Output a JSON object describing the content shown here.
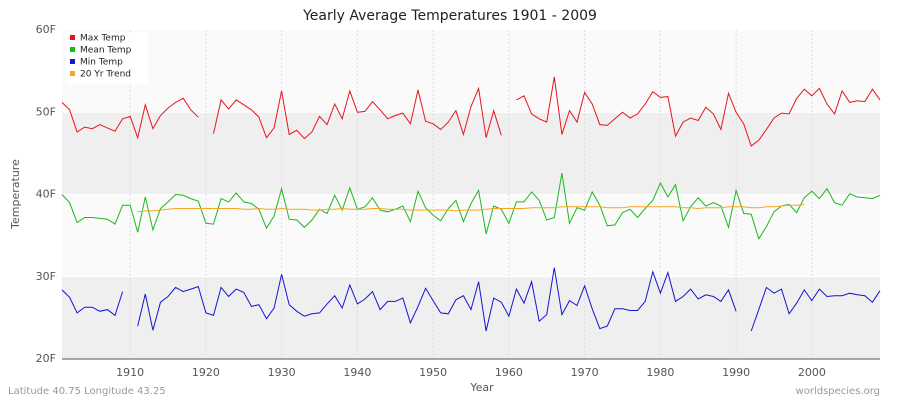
{
  "chart_data": {
    "type": "line",
    "title": "Yearly Average Temperatures 1901 - 2009",
    "xlabel": "Year",
    "ylabel": "Temperature",
    "footer_left": "Latitude 40.75 Longitude 43.25",
    "footer_right": "worldspecies.org",
    "x": [
      1901,
      1902,
      1903,
      1904,
      1905,
      1906,
      1907,
      1908,
      1909,
      1910,
      1911,
      1912,
      1913,
      1914,
      1915,
      1916,
      1917,
      1918,
      1919,
      1920,
      1921,
      1922,
      1923,
      1924,
      1925,
      1926,
      1927,
      1928,
      1929,
      1930,
      1931,
      1932,
      1933,
      1934,
      1935,
      1936,
      1937,
      1938,
      1939,
      1940,
      1941,
      1942,
      1943,
      1944,
      1945,
      1946,
      1947,
      1948,
      1949,
      1950,
      1951,
      1952,
      1953,
      1954,
      1955,
      1956,
      1957,
      1958,
      1959,
      1960,
      1961,
      1962,
      1963,
      1964,
      1965,
      1966,
      1967,
      1968,
      1969,
      1970,
      1971,
      1972,
      1973,
      1974,
      1975,
      1976,
      1977,
      1978,
      1979,
      1980,
      1981,
      1982,
      1983,
      1984,
      1985,
      1986,
      1987,
      1988,
      1989,
      1990,
      1991,
      1992,
      1993,
      1994,
      1995,
      1996,
      1997,
      1998,
      1999,
      2000,
      2001,
      2002,
      2003,
      2004,
      2005,
      2006,
      2007,
      2008,
      2009
    ],
    "series": [
      {
        "name": "Max Temp",
        "color": "#e8141c",
        "values": [
          51.2,
          50.3,
          47.6,
          48.2,
          48.0,
          48.5,
          48.1,
          47.7,
          49.2,
          49.5,
          46.9,
          50.9,
          48.0,
          49.6,
          50.5,
          51.2,
          51.7,
          50.3,
          49.4,
          null,
          47.4,
          51.5,
          50.4,
          51.5,
          50.9,
          50.3,
          49.4,
          46.9,
          48.1,
          52.6,
          47.3,
          47.8,
          46.8,
          47.6,
          49.5,
          48.5,
          51.0,
          49.2,
          52.6,
          50.0,
          50.1,
          51.3,
          50.3,
          49.2,
          49.6,
          49.9,
          48.6,
          52.7,
          48.9,
          48.6,
          47.9,
          48.8,
          50.2,
          47.3,
          50.7,
          52.9,
          46.9,
          50.2,
          47.2,
          null,
          51.5,
          52.0,
          49.8,
          49.2,
          48.8,
          54.3,
          47.3,
          50.2,
          48.8,
          52.4,
          51.0,
          48.5,
          48.4,
          49.2,
          50.0,
          49.3,
          49.8,
          51.0,
          52.5,
          51.8,
          51.9,
          47.1,
          48.8,
          49.3,
          49.0,
          50.6,
          49.8,
          47.9,
          52.3,
          50.0,
          48.6,
          45.9,
          46.6,
          47.9,
          49.3,
          49.9,
          49.8,
          51.7,
          52.8,
          52.0,
          52.9,
          51.0,
          49.8,
          52.6,
          51.2,
          51.4,
          51.3,
          52.8,
          51.5
        ]
      },
      {
        "name": "Mean Temp",
        "color": "#1cb81c",
        "values": [
          40.0,
          39.0,
          36.6,
          37.2,
          37.2,
          37.1,
          37.0,
          36.4,
          38.7,
          38.7,
          35.4,
          39.7,
          35.7,
          38.3,
          39.1,
          40.0,
          39.9,
          39.5,
          39.2,
          36.5,
          36.4,
          39.5,
          39.1,
          40.2,
          39.1,
          38.9,
          38.2,
          35.9,
          37.4,
          40.7,
          37.0,
          36.9,
          36.0,
          36.9,
          38.2,
          37.7,
          39.9,
          38.1,
          40.8,
          38.2,
          38.5,
          39.6,
          38.1,
          37.9,
          38.2,
          38.6,
          36.7,
          40.4,
          38.4,
          37.5,
          36.8,
          38.3,
          39.3,
          36.7,
          38.9,
          40.5,
          35.2,
          38.6,
          38.2,
          36.5,
          39.1,
          39.1,
          40.3,
          39.3,
          36.9,
          37.2,
          42.6,
          36.5,
          38.4,
          38.1,
          40.3,
          38.7,
          36.2,
          36.3,
          37.8,
          38.2,
          37.2,
          38.3,
          39.3,
          41.4,
          39.7,
          41.2,
          36.8,
          38.5,
          39.6,
          38.6,
          39.0,
          38.6,
          36.0,
          40.5,
          37.7,
          37.6,
          34.6,
          36.1,
          37.9,
          38.6,
          38.8,
          37.8,
          39.6,
          40.4,
          39.5,
          40.7,
          39.0,
          38.7,
          40.1,
          39.7,
          39.6,
          39.5,
          39.9
        ]
      },
      {
        "name": "Min Temp",
        "color": "#1414d2",
        "values": [
          28.4,
          27.5,
          25.6,
          26.3,
          26.3,
          25.8,
          26.0,
          25.3,
          28.2,
          null,
          24.0,
          27.9,
          23.5,
          26.9,
          27.6,
          28.7,
          28.2,
          28.5,
          28.8,
          25.6,
          25.3,
          28.7,
          27.6,
          28.5,
          28.1,
          26.4,
          26.6,
          24.9,
          26.2,
          30.3,
          26.6,
          25.8,
          25.2,
          25.5,
          25.6,
          26.7,
          27.7,
          26.2,
          29.0,
          26.7,
          27.3,
          28.2,
          26.0,
          27.0,
          27.0,
          27.4,
          24.4,
          26.4,
          28.6,
          27.1,
          25.6,
          25.5,
          27.2,
          27.7,
          26.0,
          29.4,
          23.4,
          27.4,
          26.9,
          25.2,
          28.5,
          26.8,
          29.4,
          24.6,
          25.4,
          31.1,
          25.4,
          27.1,
          26.5,
          28.9,
          26.1,
          23.7,
          24.0,
          26.1,
          26.1,
          25.9,
          25.9,
          27.0,
          30.6,
          28.0,
          30.5,
          27.0,
          27.6,
          28.5,
          27.3,
          27.8,
          27.6,
          27.0,
          28.4,
          25.8,
          null,
          23.4,
          26.0,
          28.7,
          28.0,
          28.5,
          25.5,
          26.8,
          28.4,
          27.1,
          28.5,
          27.6,
          27.7,
          27.7,
          28.0,
          27.8,
          27.7,
          26.9,
          28.3
        ]
      },
      {
        "name": "20 Yr Trend",
        "color": "#f5a623",
        "values": [
          null,
          null,
          null,
          null,
          null,
          null,
          null,
          null,
          null,
          null,
          37.9,
          38.0,
          38.0,
          38.1,
          38.2,
          38.3,
          38.3,
          38.3,
          38.3,
          38.3,
          38.3,
          38.3,
          38.3,
          38.3,
          38.2,
          38.2,
          38.3,
          38.2,
          38.2,
          38.3,
          38.2,
          38.2,
          38.2,
          38.1,
          38.1,
          38.2,
          38.2,
          38.3,
          38.2,
          38.2,
          38.2,
          38.3,
          38.3,
          38.2,
          38.2,
          38.2,
          38.1,
          38.1,
          38.1,
          38.1,
          38.1,
          38.1,
          38.0,
          38.1,
          38.1,
          38.1,
          38.2,
          38.3,
          38.3,
          38.3,
          38.3,
          38.3,
          38.4,
          38.4,
          38.4,
          38.4,
          38.5,
          38.5,
          38.5,
          38.5,
          38.5,
          38.5,
          38.4,
          38.4,
          38.4,
          38.5,
          38.5,
          38.5,
          38.5,
          38.5,
          38.5,
          38.5,
          38.4,
          38.4,
          38.3,
          38.4,
          38.4,
          38.4,
          38.5,
          38.5,
          38.5,
          38.4,
          38.4,
          38.5,
          38.5,
          38.6,
          38.7,
          38.7,
          38.8,
          null,
          null,
          null,
          null,
          null,
          null,
          null,
          null,
          null,
          null
        ]
      }
    ],
    "xlim": [
      1901,
      2009
    ],
    "xticks": [
      1910,
      1920,
      1930,
      1940,
      1950,
      1960,
      1970,
      1980,
      1990,
      2000
    ],
    "ylim": [
      20,
      60
    ],
    "yticks": [
      {
        "value": 20,
        "label": "20F"
      },
      {
        "value": 30,
        "label": "30F"
      },
      {
        "value": 40,
        "label": "40F"
      },
      {
        "value": 50,
        "label": "50F"
      },
      {
        "value": 60,
        "label": "60F"
      }
    ],
    "grid": true,
    "legend": "upper left"
  }
}
